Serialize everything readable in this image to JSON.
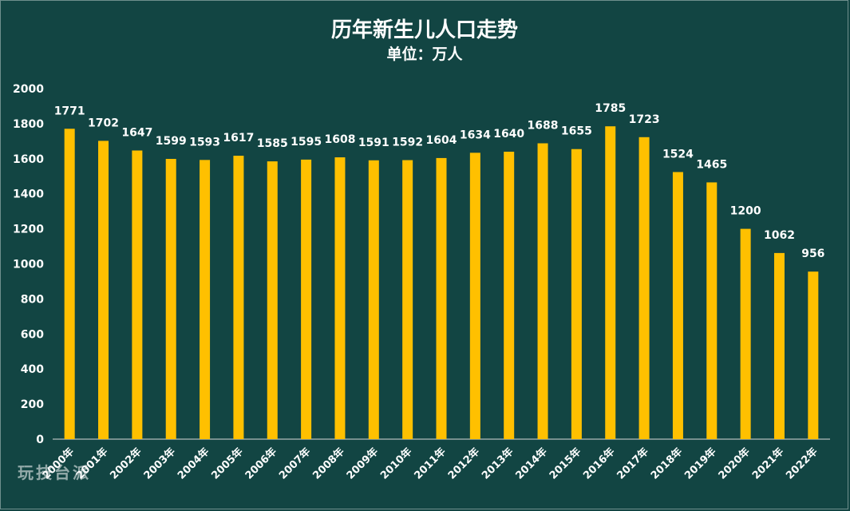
{
  "chart_data": {
    "type": "bar",
    "title": "历年新生儿人口走势",
    "subtitle": "单位：万人",
    "categories": [
      "2000年",
      "2001年",
      "2002年",
      "2003年",
      "2004年",
      "2005年",
      "2006年",
      "2007年",
      "2008年",
      "2009年",
      "2010年",
      "2011年",
      "2012年",
      "2013年",
      "2014年",
      "2015年",
      "2016年",
      "2017年",
      "2018年",
      "2019年",
      "2020年",
      "2021年",
      "2022年"
    ],
    "values": [
      1771,
      1702,
      1647,
      1599,
      1593,
      1617,
      1585,
      1595,
      1608,
      1591,
      1592,
      1604,
      1634,
      1640,
      1688,
      1655,
      1785,
      1723,
      1524,
      1465,
      1200,
      1062,
      956
    ],
    "ylim": [
      0,
      2000
    ],
    "yticks": [
      0,
      200,
      400,
      600,
      800,
      1000,
      1200,
      1400,
      1600,
      1800,
      2000
    ],
    "grid": false,
    "legend": "none",
    "bar_color": "#FFC000",
    "background_color": "#124543",
    "text_color": "#FFFFFF"
  },
  "watermark": "玩技台派"
}
